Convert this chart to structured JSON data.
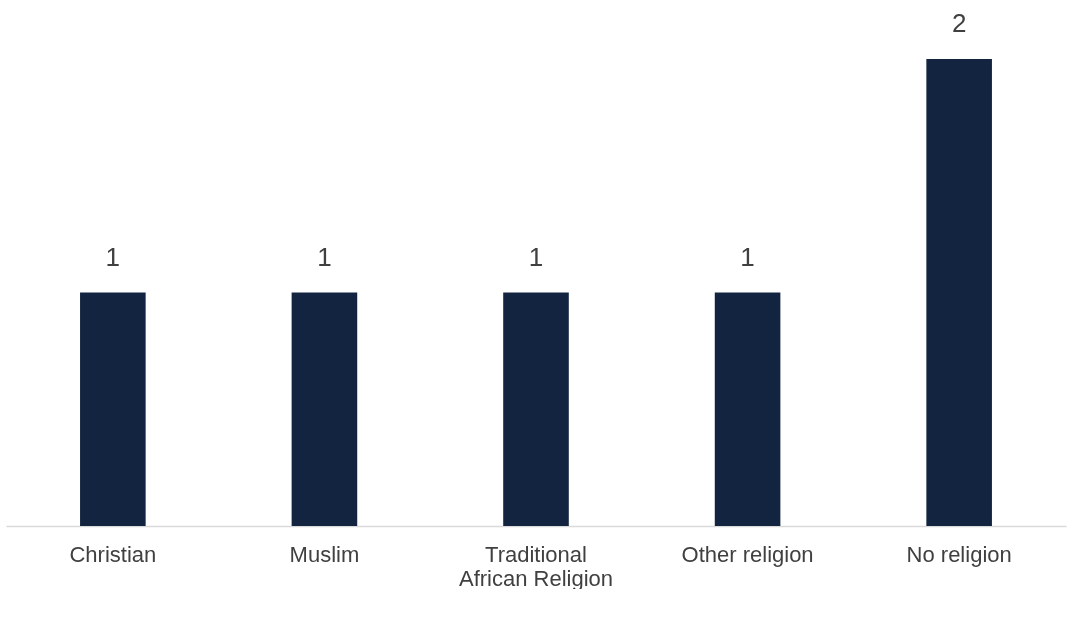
{
  "chart_data": {
    "type": "bar",
    "categories": [
      "Christian",
      "Muslim",
      "Traditional African Religion",
      "Other religion",
      "No religion"
    ],
    "values": [
      1,
      1,
      1,
      1,
      2
    ],
    "color": "#12243f",
    "data_labels": true
  }
}
